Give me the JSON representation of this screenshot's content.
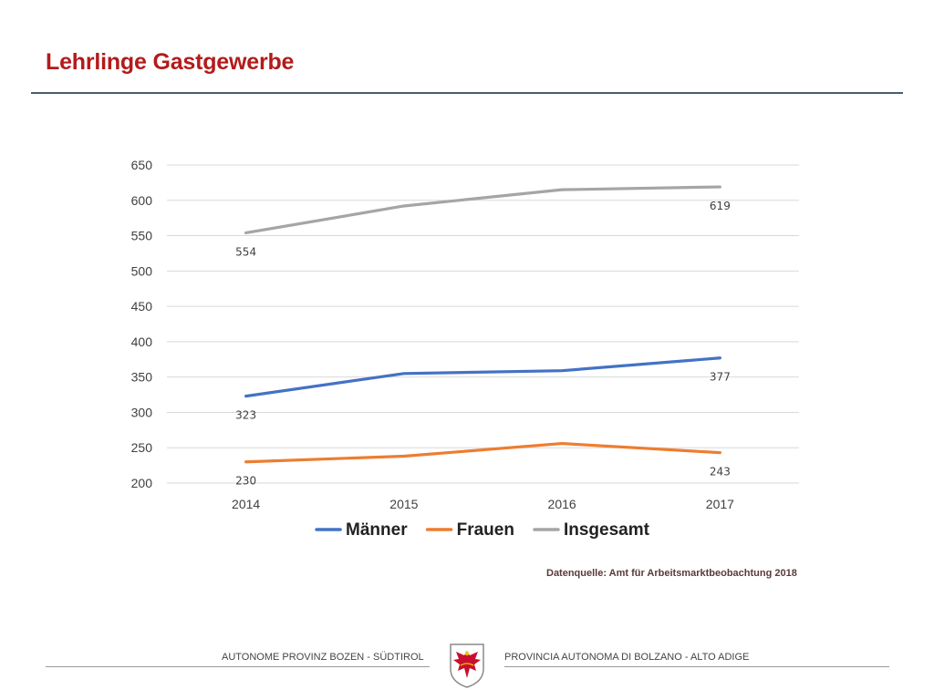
{
  "slide": {
    "title": "Lehrlinge Gastgewerbe",
    "source": "Datenquelle: Amt für Arbeitsmarktbeobachtung 2018"
  },
  "footer": {
    "left_text": "AUTONOME PROVINZ BOZEN - SÜDTIROL",
    "right_text": "PROVINCIA AUTONOMA DI BOLZANO - ALTO ADIGE",
    "emblem_icon": "tyrolean-eagle-coat-of-arms-icon"
  },
  "colors": {
    "title": "#b31b1b",
    "grid": "#d9d9d9",
    "axis_text": "#404040"
  },
  "chart_data": {
    "type": "line",
    "title": "",
    "xlabel": "",
    "ylabel": "",
    "categories": [
      "2014",
      "2015",
      "2016",
      "2017"
    ],
    "ylim": [
      200,
      650
    ],
    "yticks": [
      200,
      250,
      300,
      350,
      400,
      450,
      500,
      550,
      600,
      650
    ],
    "grid": true,
    "legend_position": "bottom",
    "series": [
      {
        "name": "Männer",
        "values": [
          323,
          355,
          359,
          377
        ],
        "color": "#4472c4",
        "labels": [
          "323",
          "",
          "",
          "377"
        ]
      },
      {
        "name": "Frauen",
        "values": [
          230,
          238,
          256,
          243
        ],
        "color": "#ed7d31",
        "labels": [
          "230",
          "",
          "",
          "243"
        ]
      },
      {
        "name": "Insgesamt",
        "values": [
          554,
          592,
          615,
          619
        ],
        "color": "#a5a5a5",
        "labels": [
          "554",
          "",
          "",
          "619"
        ]
      }
    ]
  }
}
